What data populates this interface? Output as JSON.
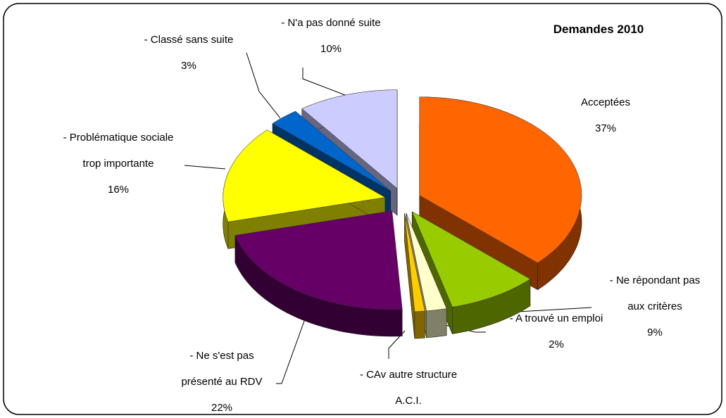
{
  "chart_data": {
    "type": "pie",
    "title": "Demandes 2010",
    "categories": [
      "Acceptées",
      "- Ne répondant pas aux critères",
      "- A trouvé un emploi",
      "- CAv autre structure A.C.I.",
      "- Ne s'est pas présenté au RDV",
      "- Problématique sociale trop importante",
      "- Classé sans suite",
      "- N'a pas donné suite"
    ],
    "values": [
      37,
      9,
      2,
      1,
      22,
      16,
      3,
      10
    ],
    "value_labels": [
      "37%",
      "9%",
      "2%",
      null,
      "22%",
      "16%",
      "3%",
      "10%"
    ],
    "colors": [
      "#ff6600",
      "#99cc00",
      "#ffffcc",
      "#ffcc00",
      "#660066",
      "#ffff00",
      "#0066cc",
      "#ccccff"
    ]
  }
}
